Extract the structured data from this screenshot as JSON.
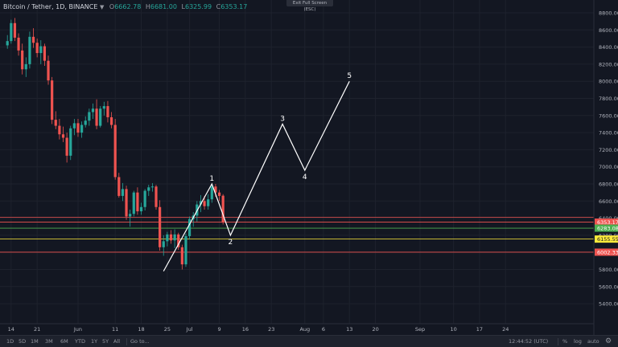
{
  "legend": {
    "symbol": "Bitcoin / Tether, 1D, BINANCE",
    "o_label": "O",
    "o": "6662.78",
    "h_label": "H",
    "h": "6681.00",
    "l_label": "L",
    "l": "6325.99",
    "c_label": "C",
    "c": "6353.17",
    "caret": "▼"
  },
  "exit_fullscreen": "Exit Full Screen (ESC)",
  "bottom_bar": {
    "timeframes": [
      "1D",
      "5D",
      "1M",
      "3M",
      "6M",
      "YTD",
      "1Y",
      "5Y",
      "All"
    ],
    "goto": "Go to...",
    "clock": "12:44:52 (UTC)",
    "percent": "%",
    "log": "log",
    "auto": "auto"
  },
  "colors": {
    "up": "#26a69a",
    "down": "#ef5350",
    "background": "#131722",
    "grid": "#2a2e39"
  },
  "chart_data": {
    "type": "candlestick",
    "title": "Bitcoin / Tether, 1D, BINANCE",
    "y_axis": {
      "ticks": [
        5400,
        5600,
        5800,
        6000,
        6200,
        6400,
        6600,
        6800,
        7000,
        7200,
        7400,
        7600,
        7800,
        8000,
        8200,
        8400,
        8600,
        8800
      ]
    },
    "x_axis": {
      "ticks": [
        "14",
        "21",
        "Jun",
        "11",
        "18",
        "25",
        "Jul",
        "9",
        "16",
        "23",
        "Aug",
        "6",
        "13",
        "20",
        "Sep",
        "10",
        "17",
        "24"
      ]
    },
    "candles": [
      [
        8420,
        8540,
        8380,
        8470
      ],
      [
        8470,
        8720,
        8440,
        8680
      ],
      [
        8680,
        8740,
        8470,
        8510
      ],
      [
        8510,
        8560,
        8300,
        8360
      ],
      [
        8360,
        8440,
        8080,
        8140
      ],
      [
        8140,
        8280,
        8050,
        8200
      ],
      [
        8200,
        8580,
        8150,
        8520
      ],
      [
        8520,
        8620,
        8390,
        8450
      ],
      [
        8450,
        8500,
        8280,
        8330
      ],
      [
        8330,
        8480,
        8200,
        8410
      ],
      [
        8410,
        8440,
        8180,
        8240
      ],
      [
        8240,
        8300,
        7960,
        8010
      ],
      [
        8010,
        8050,
        7500,
        7550
      ],
      [
        7550,
        7650,
        7440,
        7480
      ],
      [
        7480,
        7560,
        7320,
        7380
      ],
      [
        7380,
        7470,
        7290,
        7340
      ],
      [
        7340,
        7400,
        7050,
        7130
      ],
      [
        7130,
        7480,
        7080,
        7450
      ],
      [
        7450,
        7560,
        7370,
        7510
      ],
      [
        7510,
        7560,
        7350,
        7400
      ],
      [
        7400,
        7530,
        7340,
        7490
      ],
      [
        7490,
        7590,
        7460,
        7540
      ],
      [
        7540,
        7680,
        7480,
        7640
      ],
      [
        7640,
        7740,
        7560,
        7680
      ],
      [
        7680,
        7790,
        7440,
        7480
      ],
      [
        7480,
        7710,
        7460,
        7680
      ],
      [
        7680,
        7760,
        7600,
        7710
      ],
      [
        7710,
        7770,
        7520,
        7580
      ],
      [
        7580,
        7640,
        7450,
        7490
      ],
      [
        7490,
        7560,
        6850,
        6880
      ],
      [
        6880,
        6930,
        6640,
        6660
      ],
      [
        6660,
        6810,
        6600,
        6740
      ],
      [
        6740,
        6780,
        6380,
        6420
      ],
      [
        6420,
        6500,
        6300,
        6450
      ],
      [
        6450,
        6720,
        6420,
        6700
      ],
      [
        6700,
        6760,
        6440,
        6480
      ],
      [
        6480,
        6580,
        6440,
        6530
      ],
      [
        6530,
        6740,
        6490,
        6720
      ],
      [
        6720,
        6790,
        6660,
        6760
      ],
      [
        6760,
        6810,
        6710,
        6770
      ],
      [
        6770,
        6790,
        6500,
        6530
      ],
      [
        6530,
        6610,
        6020,
        6060
      ],
      [
        6060,
        6200,
        5960,
        6130
      ],
      [
        6130,
        6240,
        6070,
        6210
      ],
      [
        6210,
        6260,
        6100,
        6140
      ],
      [
        6140,
        6270,
        6050,
        6210
      ],
      [
        6210,
        6230,
        6030,
        6060
      ],
      [
        6060,
        6090,
        5800,
        5860
      ],
      [
        5860,
        6220,
        5830,
        6190
      ],
      [
        6190,
        6420,
        6150,
        6390
      ],
      [
        6390,
        6470,
        6300,
        6430
      ],
      [
        6430,
        6600,
        6360,
        6560
      ],
      [
        6560,
        6670,
        6470,
        6600
      ],
      [
        6600,
        6660,
        6500,
        6540
      ],
      [
        6540,
        6680,
        6500,
        6620
      ],
      [
        6620,
        6790,
        6580,
        6770
      ],
      [
        6770,
        6800,
        6650,
        6700
      ],
      [
        6700,
        6730,
        6600,
        6660
      ],
      [
        6662.78,
        6681,
        6325.99,
        6353.17
      ]
    ],
    "horizontal_levels": [
      {
        "value": 6353.17,
        "color": "#ef5350"
      },
      {
        "value": 6410,
        "color": "#ef5350"
      },
      {
        "value": 6283.08,
        "color": "#4caf50"
      },
      {
        "value": 6155.55,
        "color": "#ffeb3b"
      },
      {
        "value": 6002.33,
        "color": "#ef5350"
      }
    ],
    "price_labels": [
      {
        "value": 6353.17,
        "text": "6353.17",
        "bg": "#ef5350",
        "fg": "#ffffff"
      },
      {
        "value": 6283.08,
        "text": "6283.08",
        "bg": "#4caf50",
        "fg": "#ffffff"
      },
      {
        "value": 6155.55,
        "text": "6155.55",
        "bg": "#ffeb3b",
        "fg": "#131722"
      },
      {
        "value": 6002.33,
        "text": "6002.33",
        "bg": "#ef5350",
        "fg": "#ffffff"
      }
    ],
    "wave_path": [
      {
        "date": "2018-06-24",
        "price": 5780,
        "label": ""
      },
      {
        "date": "2018-07-07",
        "price": 6800,
        "label": "1"
      },
      {
        "date": "2018-07-12",
        "price": 6200,
        "label": "2"
      },
      {
        "date": "2018-07-26",
        "price": 7500,
        "label": "3"
      },
      {
        "date": "2018-08-01",
        "price": 6960,
        "label": "4"
      },
      {
        "date": "2018-08-13",
        "price": 8000,
        "label": "5"
      }
    ]
  }
}
